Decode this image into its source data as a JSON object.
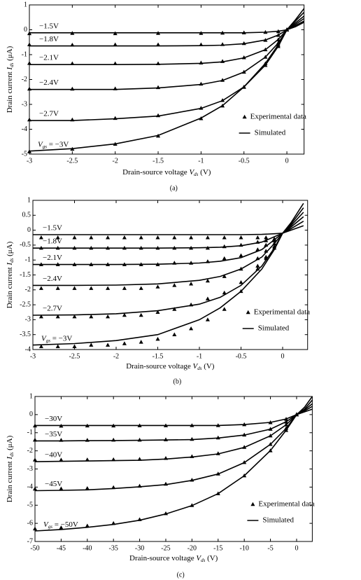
{
  "chart_data": [
    {
      "type": "line",
      "caption": "(a)",
      "xlabel": {
        "text": "Drain-source voltage ",
        "var": "V",
        "sub": "ds",
        "unit": " (V)"
      },
      "ylabel": {
        "text": "Drain current ",
        "var": "I",
        "sub": "ds",
        "unit": " (μA)"
      },
      "xlim": [
        -3,
        0.2
      ],
      "ylim": [
        -5,
        1
      ],
      "xticks": [
        -3,
        -2.5,
        -2,
        -1.5,
        -1,
        -0.5,
        0
      ],
      "yticks": [
        1,
        0,
        -1,
        -2,
        -3,
        -4,
        -5
      ],
      "legend": "lower right",
      "vgs_label": {
        "var": "V",
        "sub": "gs"
      },
      "experimental": {
        "name": "Experimental data",
        "color": "#000000",
        "marker": "triangle",
        "x": [
          -3,
          -2.5,
          -2,
          -1.5,
          -1,
          -0.75,
          -0.5,
          -0.25,
          -0.1,
          0
        ],
        "curves": [
          [
            -0.15,
            -0.14,
            -0.15,
            -0.14,
            -0.14,
            -0.13,
            -0.12,
            -0.1,
            -0.07,
            0
          ],
          [
            -0.6,
            -0.61,
            -0.6,
            -0.6,
            -0.6,
            -0.59,
            -0.55,
            -0.42,
            -0.22,
            0
          ],
          [
            -1.35,
            -1.36,
            -1.36,
            -1.36,
            -1.33,
            -1.27,
            -1.12,
            -0.8,
            -0.4,
            0
          ],
          [
            -2.38,
            -2.38,
            -2.37,
            -2.32,
            -2.18,
            -2.03,
            -1.7,
            -1.1,
            -0.53,
            0
          ],
          [
            -3.62,
            -3.62,
            -3.56,
            -3.45,
            -3.15,
            -2.84,
            -2.3,
            -1.43,
            -0.67,
            0
          ],
          [
            -4.9,
            -4.8,
            -4.6,
            -4.27,
            -3.57,
            -3.06,
            -2.31,
            -1.36,
            -0.61,
            0
          ]
        ]
      },
      "simulated": {
        "name": "Simulated",
        "color": "#000000",
        "x": [
          -3,
          -2.5,
          -2,
          -1.5,
          -1,
          -0.75,
          -0.5,
          -0.25,
          -0.1,
          0,
          0.1,
          0.2
        ],
        "curves": [
          {
            "label": "−1.5V",
            "values": [
              -0.12,
              -0.12,
              -0.12,
              -0.12,
              -0.12,
              -0.12,
              -0.12,
              -0.1,
              -0.06,
              0,
              0.4,
              0.85
            ]
          },
          {
            "label": "−1.8V",
            "values": [
              -0.65,
              -0.65,
              -0.65,
              -0.65,
              -0.64,
              -0.62,
              -0.56,
              -0.41,
              -0.21,
              0,
              0.35,
              0.7
            ]
          },
          {
            "label": "−2.1V",
            "values": [
              -1.4,
              -1.4,
              -1.4,
              -1.39,
              -1.35,
              -1.29,
              -1.13,
              -0.8,
              -0.39,
              0,
              0.28,
              0.55
            ]
          },
          {
            "label": "−2.4V",
            "values": [
              -2.4,
              -2.4,
              -2.4,
              -2.34,
              -2.2,
              -2.04,
              -1.7,
              -1.1,
              -0.53,
              0,
              0.22,
              0.45
            ]
          },
          {
            "label": "−2.7V",
            "values": [
              -3.65,
              -3.65,
              -3.58,
              -3.47,
              -3.16,
              -2.85,
              -2.3,
              -1.42,
              -0.66,
              0,
              0.17,
              0.35
            ]
          },
          {
            "label": " = −3V",
            "values": [
              -4.88,
              -4.78,
              -4.59,
              -4.25,
              -3.55,
              -3.05,
              -2.3,
              -1.35,
              -0.6,
              0,
              0.12,
              0.3
            ]
          }
        ]
      }
    },
    {
      "type": "line",
      "caption": "(b)",
      "xlabel": {
        "text": "Drain-source voltage ",
        "var": "V",
        "sub": "ds",
        "unit": " (V)"
      },
      "ylabel": {
        "text": "Drain current ",
        "var": "I",
        "sub": "ds",
        "unit": " (μA)"
      },
      "xlim": [
        -3,
        0.3
      ],
      "ylim": [
        -4,
        1
      ],
      "xticks": [
        -3,
        -2.5,
        -2,
        -1.5,
        -1,
        -0.5,
        0
      ],
      "yticks": [
        1,
        0.5,
        0,
        -0.5,
        -1,
        -1.5,
        -2,
        -2.5,
        -3,
        -3.5,
        -4
      ],
      "legend": "lower right",
      "vgs_label": {
        "var": "V",
        "sub": "gs"
      },
      "experimental": {
        "name": "Experimental data",
        "color": "#000000",
        "marker": "triangle",
        "x": [
          -2.9,
          -2.7,
          -2.5,
          -2.3,
          -2.1,
          -1.9,
          -1.7,
          -1.5,
          -1.3,
          -1.1,
          -0.9,
          -0.7,
          -0.5,
          -0.3,
          -0.2,
          -0.1
        ],
        "curves": [
          [
            -0.25,
            -0.25,
            -0.25,
            -0.25,
            -0.25,
            -0.25,
            -0.25,
            -0.25,
            -0.25,
            -0.25,
            -0.25,
            -0.25,
            -0.25,
            -0.25,
            -0.25,
            -0.3
          ],
          [
            -0.6,
            -0.6,
            -0.6,
            -0.6,
            -0.6,
            -0.6,
            -0.6,
            -0.6,
            -0.6,
            -0.6,
            -0.6,
            -0.55,
            -0.5,
            -0.4,
            -0.35,
            -0.3
          ],
          [
            -1.15,
            -1.15,
            -1.15,
            -1.15,
            -1.15,
            -1.15,
            -1.15,
            -1.15,
            -1.1,
            -1.1,
            -1.05,
            -0.95,
            -0.85,
            -0.65,
            -0.5,
            -0.35
          ],
          [
            -1.95,
            -1.95,
            -1.95,
            -1.95,
            -1.95,
            -1.95,
            -1.95,
            -1.9,
            -1.85,
            -1.8,
            -1.7,
            -1.55,
            -1.3,
            -0.95,
            -0.7,
            -0.45
          ],
          [
            -2.9,
            -2.9,
            -2.9,
            -2.9,
            -2.9,
            -2.85,
            -2.85,
            -2.75,
            -2.65,
            -2.5,
            -2.3,
            -2.1,
            -1.75,
            -1.2,
            -0.9,
            -0.55
          ],
          [
            -3.9,
            -3.9,
            -3.9,
            -3.85,
            -3.85,
            -3.8,
            -3.75,
            -3.65,
            -3.5,
            -3.3,
            -3.0,
            -2.65,
            -2.05,
            -1.3,
            -0.95,
            -0.6
          ]
        ]
      },
      "simulated": {
        "name": "Simulated",
        "color": "#000000",
        "x": [
          -3,
          -2.5,
          -2,
          -1.5,
          -1,
          -0.75,
          -0.5,
          -0.25,
          -0.1,
          0,
          0.1,
          0.25
        ],
        "curves": [
          {
            "label": "−1.5V",
            "values": [
              -0.15,
              -0.15,
              -0.15,
              -0.15,
              -0.15,
              -0.15,
              -0.15,
              -0.14,
              -0.12,
              -0.1,
              0.25,
              0.9
            ]
          },
          {
            "label": "−1.8V",
            "values": [
              -0.6,
              -0.6,
              -0.6,
              -0.6,
              -0.59,
              -0.57,
              -0.52,
              -0.4,
              -0.22,
              -0.1,
              0.2,
              0.75
            ]
          },
          {
            "label": "−2.1V",
            "values": [
              -1.15,
              -1.15,
              -1.15,
              -1.14,
              -1.1,
              -1.04,
              -0.92,
              -0.65,
              -0.32,
              -0.1,
              0.15,
              0.6
            ]
          },
          {
            "label": "−2.4V",
            "values": [
              -1.85,
              -1.85,
              -1.84,
              -1.8,
              -1.68,
              -1.55,
              -1.3,
              -0.9,
              -0.45,
              -0.1,
              0.1,
              0.45
            ]
          },
          {
            "label": "−2.7V",
            "values": [
              -2.85,
              -2.84,
              -2.8,
              -2.7,
              -2.48,
              -2.25,
              -1.85,
              -1.2,
              -0.6,
              -0.1,
              0.05,
              0.3
            ]
          },
          {
            "label": " = −3V",
            "values": [
              -3.85,
              -3.8,
              -3.7,
              -3.5,
              -3.0,
              -2.6,
              -2.05,
              -1.3,
              -0.65,
              -0.1,
              0.0,
              0.15
            ]
          }
        ]
      }
    },
    {
      "type": "line",
      "caption": "(c)",
      "xlabel": {
        "text": "Drain-source voltage ",
        "var": "V",
        "sub": "ds",
        "unit": " (V)"
      },
      "ylabel": {
        "text": "Drain current ",
        "var": "I",
        "sub": "ds",
        "unit": " (μA)"
      },
      "xlim": [
        -50,
        3
      ],
      "ylim": [
        -7,
        1
      ],
      "xticks": [
        -50,
        -45,
        -40,
        -35,
        -30,
        -25,
        -20,
        -15,
        -10,
        -5,
        0
      ],
      "yticks": [
        1,
        0,
        -1,
        -2,
        -3,
        -4,
        -5,
        -6,
        -7
      ],
      "legend": "lower right",
      "vgs_label": {
        "var": "V",
        "sub": "gs"
      },
      "experimental": {
        "name": "Experimental data",
        "color": "#000000",
        "marker": "triangle",
        "x": [
          -50,
          -45,
          -40,
          -35,
          -30,
          -25,
          -20,
          -15,
          -10,
          -5,
          -2,
          0
        ],
        "curves": [
          [
            -0.62,
            -0.63,
            -0.62,
            -0.62,
            -0.61,
            -0.61,
            -0.6,
            -0.6,
            -0.55,
            -0.44,
            -0.25,
            0
          ],
          [
            -1.4,
            -1.41,
            -1.41,
            -1.4,
            -1.4,
            -1.38,
            -1.36,
            -1.28,
            -1.12,
            -0.8,
            -0.4,
            0
          ],
          [
            -2.5,
            -2.5,
            -2.49,
            -2.48,
            -2.46,
            -2.41,
            -2.31,
            -2.15,
            -1.8,
            -1.17,
            -0.56,
            0
          ],
          [
            -4.1,
            -4.09,
            -4.07,
            -4.02,
            -3.94,
            -3.83,
            -3.61,
            -3.27,
            -2.64,
            -1.64,
            -0.76,
            0
          ],
          [
            -6.3,
            -6.24,
            -6.14,
            -6.0,
            -5.79,
            -5.46,
            -5.01,
            -4.36,
            -3.37,
            -1.99,
            -0.87,
            0
          ]
        ]
      },
      "simulated": {
        "name": "Simulated",
        "color": "#000000",
        "x": [
          -50,
          -45,
          -40,
          -35,
          -30,
          -25,
          -20,
          -15,
          -10,
          -5,
          -2,
          0,
          1.5,
          3
        ],
        "curves": [
          {
            "label": "−30V",
            "values": [
              -0.6,
              -0.6,
              -0.6,
              -0.6,
              -0.6,
              -0.6,
              -0.6,
              -0.6,
              -0.55,
              -0.43,
              -0.24,
              0,
              0.4,
              1.0
            ]
          },
          {
            "label": "−35V",
            "values": [
              -1.45,
              -1.45,
              -1.44,
              -1.43,
              -1.42,
              -1.4,
              -1.38,
              -1.29,
              -1.13,
              -0.8,
              -0.39,
              0,
              0.3,
              0.8
            ]
          },
          {
            "label": "−40V",
            "values": [
              -2.6,
              -2.58,
              -2.56,
              -2.54,
              -2.52,
              -2.45,
              -2.34,
              -2.17,
              -1.81,
              -1.17,
              -0.56,
              0,
              0.25,
              0.6
            ]
          },
          {
            "label": "−45V",
            "values": [
              -4.2,
              -4.18,
              -4.15,
              -4.08,
              -3.98,
              -3.86,
              -3.63,
              -3.28,
              -2.65,
              -1.64,
              -0.76,
              0,
              0.2,
              0.45
            ]
          },
          {
            "label": " = −50V",
            "values": [
              -6.42,
              -6.34,
              -6.22,
              -6.06,
              -5.83,
              -5.48,
              -5.02,
              -4.36,
              -3.37,
              -1.98,
              -0.86,
              0,
              0.15,
              0.3
            ]
          }
        ]
      }
    }
  ]
}
